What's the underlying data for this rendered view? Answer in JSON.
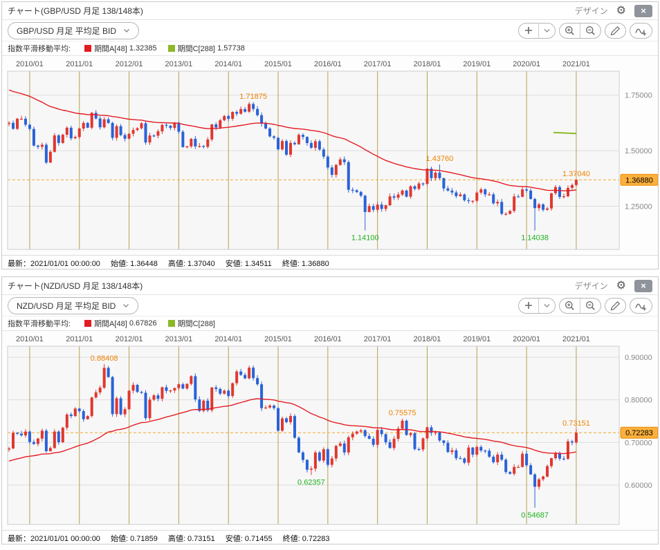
{
  "icons": {
    "gear-icon": "⚙",
    "close-icon": "×",
    "add-icon": "plus-shape",
    "chevron-down-icon": "chevron-shape",
    "zoom-in-icon": "magnifier-plus-shape",
    "zoom-out-icon": "magnifier-minus-shape",
    "pencil-icon": "pencil-shape",
    "indicator-icon": "wave-plus-shape"
  },
  "colors": {
    "candle_up": "#e0372e",
    "candle_down": "#2a62d8",
    "ema_a": "#e51b23",
    "ema_c": "#8db829",
    "grid_vertical": "#b5a04e",
    "grid_horizontal": "#dddddd",
    "current_line": "#f5a623",
    "badge_bg": "#fbb03c",
    "badge_border": "#e88a00",
    "annotation_high": "#ef8200",
    "annotation_low": "#1eb11e",
    "plot_bg": "#f7f7f7"
  },
  "panels": [
    {
      "title": "チャート(GBP/USD 月足 138/148本)",
      "design_label": "デザイン",
      "symbol_selector": "GBP/USD 月足 平均足 BID",
      "legend": {
        "label": "指数平滑移動平均:",
        "series": [
          {
            "name": "期間A[48]",
            "value": "1.32385",
            "color": "#e31b23"
          },
          {
            "name": "期間C[288]",
            "value": "1.57738",
            "color": "#8db829"
          }
        ]
      },
      "status": {
        "latest": "最新：2021/01/01 00:00:00",
        "open_label": "始値:",
        "open": "1.36448",
        "high_label": "高値:",
        "high": "1.37040",
        "low_label": "安値:",
        "low": "1.34511",
        "close_label": "終値:",
        "close": "1.36880"
      },
      "chart_data": {
        "type": "candlestick",
        "pair": "GBP/USD",
        "timeframe": "月足",
        "bars_shown": "138/148本",
        "start_month": "2009/08",
        "value_range": [
          1.0556,
          1.858
        ],
        "x_axis": {
          "labels": [
            "2010/01",
            "2011/01",
            "2012/01",
            "2013/01",
            "2014/01",
            "2015/01",
            "2016/01",
            "2017/01",
            "2018/01",
            "2019/01",
            "2020/01",
            "2021/01"
          ],
          "first_index": 5,
          "every": 12
        },
        "y_axis": {
          "ticks": [
            {
              "value": 1.75,
              "label": "1.75000"
            },
            {
              "value": 1.5,
              "label": "1.50000"
            },
            {
              "value": 1.25,
              "label": "1.25000"
            }
          ]
        },
        "closes": [
          1.6255,
          1.5985,
          1.644,
          1.644,
          1.617,
          1.598,
          1.523,
          1.5175,
          1.527,
          1.4465,
          1.495,
          1.569,
          1.535,
          1.572,
          1.6035,
          1.556,
          1.5615,
          1.6,
          1.625,
          1.6035,
          1.6705,
          1.645,
          1.6055,
          1.6415,
          1.625,
          1.558,
          1.6105,
          1.5705,
          1.554,
          1.5765,
          1.593,
          1.601,
          1.6235,
          1.537,
          1.5685,
          1.5675,
          1.587,
          1.6165,
          1.6125,
          1.6025,
          1.626,
          1.5855,
          1.5165,
          1.5195,
          1.5535,
          1.5195,
          1.521,
          1.5175,
          1.5505,
          1.6185,
          1.6045,
          1.637,
          1.656,
          1.6435,
          1.6745,
          1.6665,
          1.6875,
          1.6755,
          1.7105,
          1.688,
          1.66,
          1.6215,
          1.6,
          1.5645,
          1.558,
          1.506,
          1.5435,
          1.482,
          1.535,
          1.529,
          1.5715,
          1.562,
          1.5345,
          1.513,
          1.5425,
          1.5055,
          1.4735,
          1.4245,
          1.3915,
          1.436,
          1.461,
          1.4485,
          1.324,
          1.322,
          1.314,
          1.2975,
          1.224,
          1.2505,
          1.234,
          1.2575,
          1.238,
          1.2545,
          1.2945,
          1.2885,
          1.3025,
          1.3205,
          1.293,
          1.34,
          1.328,
          1.3525,
          1.3505,
          1.419,
          1.3765,
          1.4015,
          1.3765,
          1.33,
          1.3205,
          1.312,
          1.2955,
          1.303,
          1.277,
          1.2745,
          1.2745,
          1.3115,
          1.326,
          1.3035,
          1.3035,
          1.263,
          1.2695,
          1.216,
          1.216,
          1.229,
          1.294,
          1.2925,
          1.326,
          1.3205,
          1.2825,
          1.2415,
          1.2585,
          1.234,
          1.24,
          1.3085,
          1.3365,
          1.292,
          1.295,
          1.3325,
          1.3455,
          1.3688
        ],
        "ohlc_latest": {
          "open": 1.36448,
          "high": 1.3704,
          "low": 1.34511,
          "close": 1.3688
        },
        "annotations": [
          {
            "index": 59,
            "type": "high",
            "value": 1.71875,
            "label": "1.71875"
          },
          {
            "index": 104,
            "type": "high",
            "value": 1.4376,
            "label": "1.43760"
          },
          {
            "index": 137,
            "type": "high",
            "value": 1.3704,
            "label": "1.37040"
          },
          {
            "index": 86,
            "type": "low",
            "value": 1.141,
            "label": "1.14100"
          },
          {
            "index": 127,
            "type": "low",
            "value": 1.14038,
            "label": "1.14038"
          }
        ],
        "current_price": {
          "value": 1.3688,
          "label": "1.36880"
        },
        "ema_a": {
          "period": 48,
          "seed": 1.78,
          "latest": 1.32385
        },
        "ema_c_segment": {
          "period": 288,
          "from_index": 131.5,
          "to_index": 137,
          "from_value": 1.582,
          "to_value": 1.57738
        }
      }
    },
    {
      "title": "チャート(NZD/USD 月足 138/148本)",
      "design_label": "デザイン",
      "symbol_selector": "NZD/USD 月足 平均足 BID",
      "legend": {
        "label": "指数平滑移動平均:",
        "series": [
          {
            "name": "期間A[48]",
            "value": "0.67826",
            "color": "#e31b23"
          },
          {
            "name": "期間C[288]",
            "value": "",
            "color": "#8db829"
          }
        ]
      },
      "status": {
        "latest": "最新：2021/01/01 00:00:00",
        "open_label": "始値:",
        "open": "0.71859",
        "high_label": "高値:",
        "high": "0.73151",
        "low_label": "安値:",
        "low": "0.71455",
        "close_label": "終値:",
        "close": "0.72283"
      },
      "chart_data": {
        "type": "candlestick",
        "pair": "NZD/USD",
        "timeframe": "月足",
        "bars_shown": "138/148本",
        "start_month": "2009/08",
        "value_range": [
          0.5076,
          0.9259
        ],
        "x_axis": {
          "labels": [
            "2010/01",
            "2011/01",
            "2012/01",
            "2013/01",
            "2014/01",
            "2015/01",
            "2016/01",
            "2017/01",
            "2018/01",
            "2019/01",
            "2020/01",
            "2021/01"
          ],
          "first_index": 5,
          "every": 12
        },
        "y_axis": {
          "ticks": [
            {
              "value": 0.9,
              "label": "0.90000"
            },
            {
              "value": 0.8,
              "label": "0.80000"
            },
            {
              "value": 0.7,
              "label": "0.70000"
            },
            {
              "value": 0.6,
              "label": "0.60000"
            }
          ]
        },
        "closes": [
          0.686,
          0.7225,
          0.7205,
          0.7165,
          0.7255,
          0.701,
          0.6965,
          0.709,
          0.7275,
          0.6795,
          0.687,
          0.7255,
          0.7005,
          0.7345,
          0.7655,
          0.762,
          0.7795,
          0.7735,
          0.7545,
          0.762,
          0.8055,
          0.8175,
          0.8285,
          0.875,
          0.8535,
          0.7665,
          0.8035,
          0.766,
          0.778,
          0.8215,
          0.835,
          0.8185,
          0.8165,
          0.757,
          0.8005,
          0.8105,
          0.8025,
          0.8295,
          0.821,
          0.822,
          0.8275,
          0.8365,
          0.8265,
          0.8375,
          0.8555,
          0.801,
          0.774,
          0.798,
          0.7755,
          0.829,
          0.8255,
          0.8145,
          0.8215,
          0.809,
          0.839,
          0.8665,
          0.8585,
          0.8505,
          0.8755,
          0.851,
          0.8365,
          0.7805,
          0.782,
          0.7865,
          0.7805,
          0.7275,
          0.7565,
          0.7475,
          0.762,
          0.711,
          0.6765,
          0.659,
          0.636,
          0.6385,
          0.6765,
          0.6575,
          0.684,
          0.6475,
          0.6625,
          0.692,
          0.6975,
          0.6765,
          0.712,
          0.7205,
          0.7255,
          0.7285,
          0.715,
          0.7085,
          0.6945,
          0.7295,
          0.7195,
          0.7005,
          0.687,
          0.7085,
          0.7325,
          0.751,
          0.7175,
          0.7215,
          0.6845,
          0.6835,
          0.7095,
          0.7355,
          0.7225,
          0.7235,
          0.7045,
          0.699,
          0.6775,
          0.6815,
          0.663,
          0.6625,
          0.6525,
          0.688,
          0.6715,
          0.6895,
          0.681,
          0.6805,
          0.6665,
          0.6535,
          0.6715,
          0.6595,
          0.6305,
          0.6265,
          0.6425,
          0.6425,
          0.6735,
          0.6465,
          0.625,
          0.596,
          0.6135,
          0.62,
          0.6445,
          0.663,
          0.6745,
          0.662,
          0.6615,
          0.7025,
          0.7,
          0.72283
        ],
        "ohlc_latest": {
          "open": 0.71859,
          "high": 0.73151,
          "low": 0.71455,
          "close": 0.72283
        },
        "annotations": [
          {
            "index": 23,
            "type": "high",
            "value": 0.88408,
            "label": "0.88408"
          },
          {
            "index": 95,
            "type": "high",
            "value": 0.75575,
            "label": "0.75575"
          },
          {
            "index": 137,
            "type": "high",
            "value": 0.73151,
            "label": "0.73151"
          },
          {
            "index": 73,
            "type": "low",
            "value": 0.62357,
            "label": "0.62357"
          },
          {
            "index": 127,
            "type": "low",
            "value": 0.54687,
            "label": "0.54687"
          }
        ],
        "current_price": {
          "value": 0.72283,
          "label": "0.72283"
        },
        "ema_a": {
          "period": 48,
          "seed": 0.655,
          "latest": 0.67826
        },
        "ema_c_segment": null
      }
    }
  ]
}
